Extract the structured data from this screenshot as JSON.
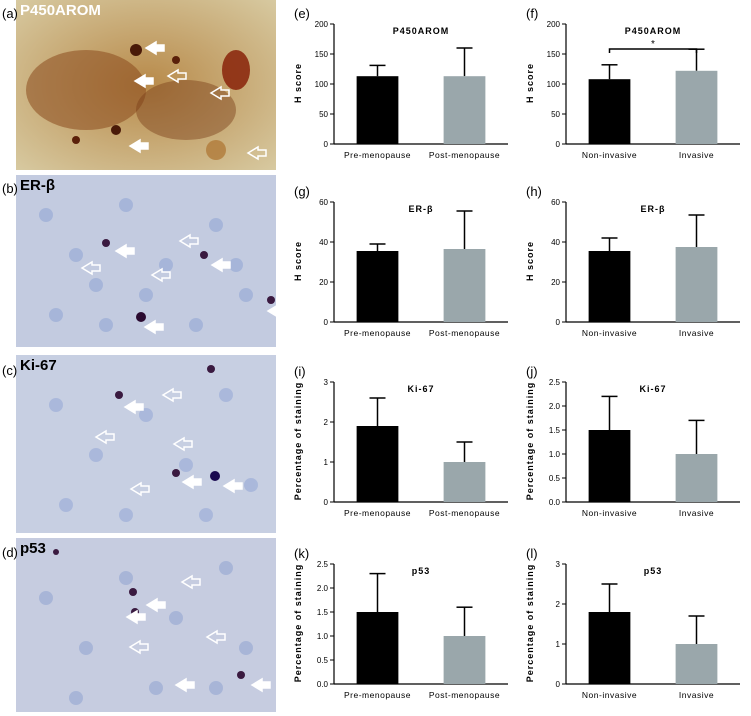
{
  "micrographs": [
    {
      "letter": "(a)",
      "title": "P450AROM"
    },
    {
      "letter": "(b)",
      "title": "ER-β"
    },
    {
      "letter": "(c)",
      "title": "Ki-67"
    },
    {
      "letter": "(d)",
      "title": "p53"
    }
  ],
  "colors": {
    "pre": "#000000",
    "post": "#9aa7ab",
    "arrow": "#ffffff"
  },
  "chart_data": [
    {
      "id": "e",
      "letter": "(e)",
      "type": "bar",
      "title": "P450AROM",
      "ylabel": "H score",
      "categories": [
        "Pre-menopause",
        "Post-menopause"
      ],
      "values": [
        113,
        113
      ],
      "errors": [
        18,
        47
      ],
      "ylim": [
        0,
        200
      ],
      "yticks": [
        0,
        50,
        100,
        150,
        200
      ],
      "tick_decimals": 0
    },
    {
      "id": "f",
      "letter": "(f)",
      "type": "bar",
      "title": "P450AROM",
      "ylabel": "H score",
      "categories": [
        "Non-invasive",
        "Invasive"
      ],
      "values": [
        108,
        122
      ],
      "errors": [
        24,
        36
      ],
      "ylim": [
        0,
        200
      ],
      "yticks": [
        0,
        50,
        100,
        150,
        200
      ],
      "tick_decimals": 0,
      "significance": "*"
    },
    {
      "id": "g",
      "letter": "(g)",
      "type": "bar",
      "title": "ER-β",
      "ylabel": "H score",
      "categories": [
        "Pre-menopause",
        "Post-menopause"
      ],
      "values": [
        35.5,
        36.5
      ],
      "errors": [
        3.5,
        19
      ],
      "ylim": [
        0,
        60
      ],
      "yticks": [
        0,
        20,
        40,
        60
      ],
      "tick_decimals": 0
    },
    {
      "id": "h",
      "letter": "(h)",
      "type": "bar",
      "title": "ER-β",
      "ylabel": "H score",
      "categories": [
        "Non-invasive",
        "Invasive"
      ],
      "values": [
        35.5,
        37.5
      ],
      "errors": [
        6.5,
        16
      ],
      "ylim": [
        0,
        60
      ],
      "yticks": [
        0,
        20,
        40,
        60
      ],
      "tick_decimals": 0
    },
    {
      "id": "i",
      "letter": "(i)",
      "type": "bar",
      "title": "Ki-67",
      "ylabel": "Percentage of staining",
      "categories": [
        "Pre-menopause",
        "Post-menopause"
      ],
      "values": [
        1.9,
        1.0
      ],
      "errors": [
        0.7,
        0.5
      ],
      "ylim": [
        0,
        3
      ],
      "yticks": [
        0,
        1,
        2,
        3
      ],
      "tick_decimals": 0
    },
    {
      "id": "j",
      "letter": "(j)",
      "type": "bar",
      "title": "Ki-67",
      "ylabel": "Percentage of staining",
      "categories": [
        "Non-invasive",
        "Invasive"
      ],
      "values": [
        1.5,
        1.0
      ],
      "errors": [
        0.7,
        0.7
      ],
      "ylim": [
        0,
        2.5
      ],
      "yticks": [
        0,
        0.5,
        1.0,
        1.5,
        2.0,
        2.5
      ],
      "tick_decimals": 1
    },
    {
      "id": "k",
      "letter": "(k)",
      "type": "bar",
      "title": "p53",
      "ylabel": "Percentage of staining",
      "categories": [
        "Pre-menopause",
        "Post-menopause"
      ],
      "values": [
        1.5,
        1.0
      ],
      "errors": [
        0.8,
        0.6
      ],
      "ylim": [
        0,
        2.5
      ],
      "yticks": [
        0,
        0.5,
        1.0,
        1.5,
        2.0,
        2.5
      ],
      "tick_decimals": 1
    },
    {
      "id": "l",
      "letter": "(l)",
      "type": "bar",
      "title": "p53",
      "ylabel": "Percentage of staining",
      "categories": [
        "Non-invasive",
        "Invasive"
      ],
      "values": [
        1.8,
        1.0
      ],
      "errors": [
        0.7,
        0.7
      ],
      "ylim": [
        0,
        3
      ],
      "yticks": [
        0,
        1,
        2,
        3
      ],
      "tick_decimals": 0
    }
  ]
}
